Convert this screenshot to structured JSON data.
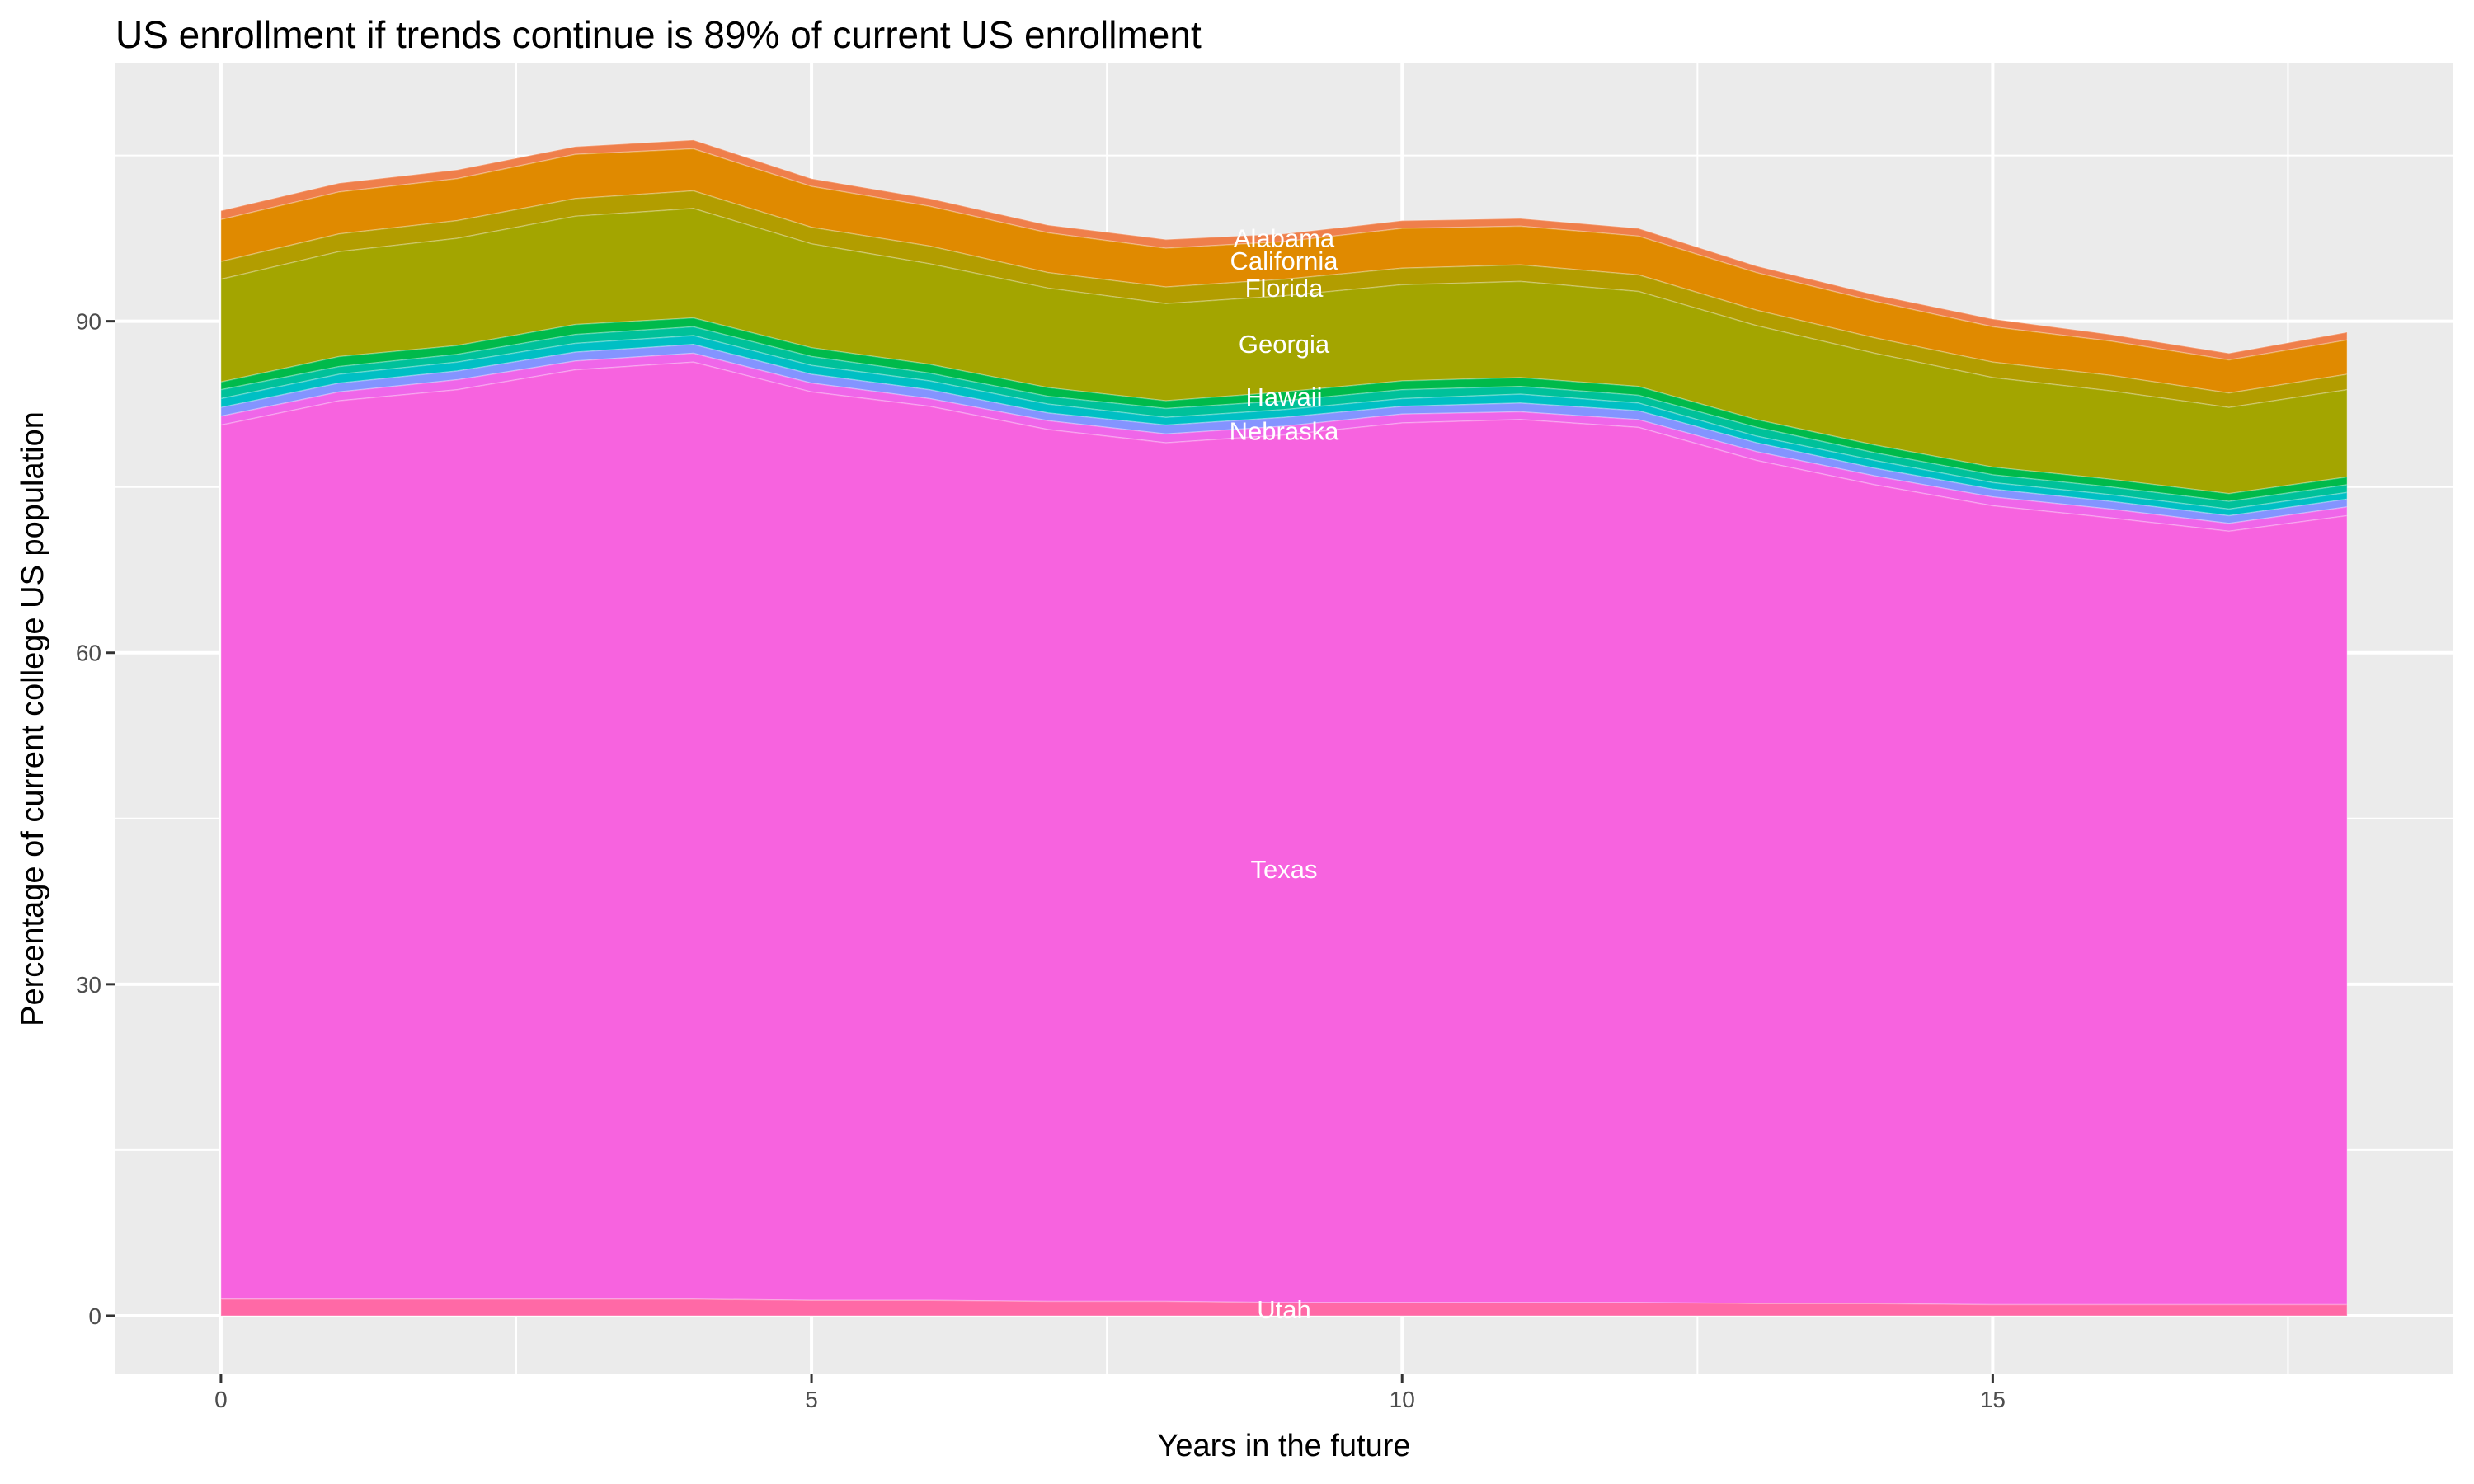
{
  "chart_data": {
    "type": "area",
    "stacked": true,
    "title": "US enrollment if trends continue is 89% of current US enrollment",
    "xlabel": "Years in the future",
    "ylabel": "Percentage of current college US population",
    "xlim": [
      -0.9,
      18.9
    ],
    "ylim": [
      -5.3,
      113.4
    ],
    "x_ticks": [
      0,
      5,
      10,
      15
    ],
    "y_ticks": [
      0,
      30,
      60,
      90
    ],
    "grid": true,
    "legend": "none",
    "label_x": 9,
    "x": [
      0,
      1,
      2,
      3,
      4,
      5,
      6,
      7,
      8,
      9,
      10,
      11,
      12,
      13,
      14,
      15,
      16,
      17,
      18
    ],
    "series": [
      {
        "name": "Alabama",
        "color": "#EF7F4B",
        "values": [
          0.8,
          0.8,
          0.8,
          0.7,
          0.8,
          0.7,
          0.7,
          0.7,
          0.8,
          0.7,
          0.7,
          0.7,
          0.7,
          0.6,
          0.6,
          0.7,
          0.6,
          0.6,
          0.7
        ]
      },
      {
        "name": "California",
        "color": "#E08A00",
        "values": [
          3.8,
          3.8,
          3.8,
          4.0,
          3.8,
          3.7,
          3.6,
          3.6,
          3.5,
          3.4,
          3.6,
          3.5,
          3.5,
          3.4,
          3.3,
          3.2,
          3.1,
          3.0,
          3.1
        ]
      },
      {
        "name": "Florida",
        "color": "#B29D00",
        "values": [
          1.6,
          1.6,
          1.6,
          1.6,
          1.6,
          1.5,
          1.6,
          1.4,
          1.5,
          1.5,
          1.5,
          1.5,
          1.5,
          1.4,
          1.4,
          1.4,
          1.4,
          1.3,
          1.4
        ]
      },
      {
        "name": "Georgia",
        "color": "#A3A500",
        "values": [
          9.3,
          9.5,
          9.7,
          9.8,
          9.9,
          9.4,
          9.1,
          9.0,
          8.8,
          8.7,
          8.7,
          8.7,
          8.6,
          8.5,
          8.3,
          8.1,
          8.0,
          7.8,
          7.9
        ]
      },
      {
        "name": "Hawaii",
        "color": "#00BA4B",
        "values": [
          0.7,
          0.9,
          0.8,
          0.9,
          0.8,
          0.8,
          0.8,
          0.8,
          0.7,
          0.8,
          0.8,
          0.8,
          0.8,
          0.7,
          0.7,
          0.7,
          0.7,
          0.7,
          0.7
        ]
      },
      {
        "color": "#00C19A",
        "values": [
          0.8,
          0.7,
          0.7,
          0.8,
          0.8,
          0.8,
          0.7,
          0.7,
          0.8,
          0.8,
          0.8,
          0.7,
          0.7,
          0.8,
          0.7,
          0.7,
          0.7,
          0.7,
          0.7
        ]
      },
      {
        "color": "#00BFC4",
        "values": [
          0.8,
          0.8,
          0.8,
          0.8,
          0.8,
          0.8,
          0.8,
          0.8,
          0.7,
          0.7,
          0.7,
          0.8,
          0.7,
          0.6,
          0.7,
          0.6,
          0.6,
          0.6,
          0.6
        ]
      },
      {
        "color": "#8494FF",
        "values": [
          0.8,
          0.8,
          0.8,
          0.8,
          0.8,
          0.8,
          0.8,
          0.7,
          0.8,
          0.8,
          0.7,
          0.8,
          0.8,
          0.8,
          0.7,
          0.7,
          0.7,
          0.7,
          0.7
        ]
      },
      {
        "name": "Nebraska",
        "color": "#EF66E9",
        "values": [
          0.8,
          0.8,
          0.9,
          0.8,
          0.8,
          0.8,
          0.7,
          0.8,
          0.8,
          0.8,
          0.8,
          0.7,
          0.7,
          0.8,
          0.8,
          0.8,
          0.8,
          0.7,
          0.8
        ]
      },
      {
        "name": "Texas",
        "color": "#F763DF",
        "values": [
          79.1,
          81.3,
          82.3,
          84.1,
          84.8,
          82.2,
          80.9,
          78.9,
          77.7,
          78.5,
          79.6,
          79.9,
          79.2,
          76.3,
          74.1,
          72.3,
          71.2,
          70.0,
          71.4
        ]
      },
      {
        "name": "Utah",
        "color": "#FF69A6",
        "values": [
          1.5,
          1.5,
          1.5,
          1.5,
          1.5,
          1.4,
          1.4,
          1.3,
          1.3,
          1.2,
          1.2,
          1.2,
          1.2,
          1.1,
          1.1,
          1.0,
          1.0,
          1.0,
          1.0
        ]
      }
    ],
    "colors": {
      "panel_background": "#EBEBEB",
      "grid": "#FFFFFF",
      "text": "#000000",
      "tick_text": "#4D4D4D"
    }
  }
}
